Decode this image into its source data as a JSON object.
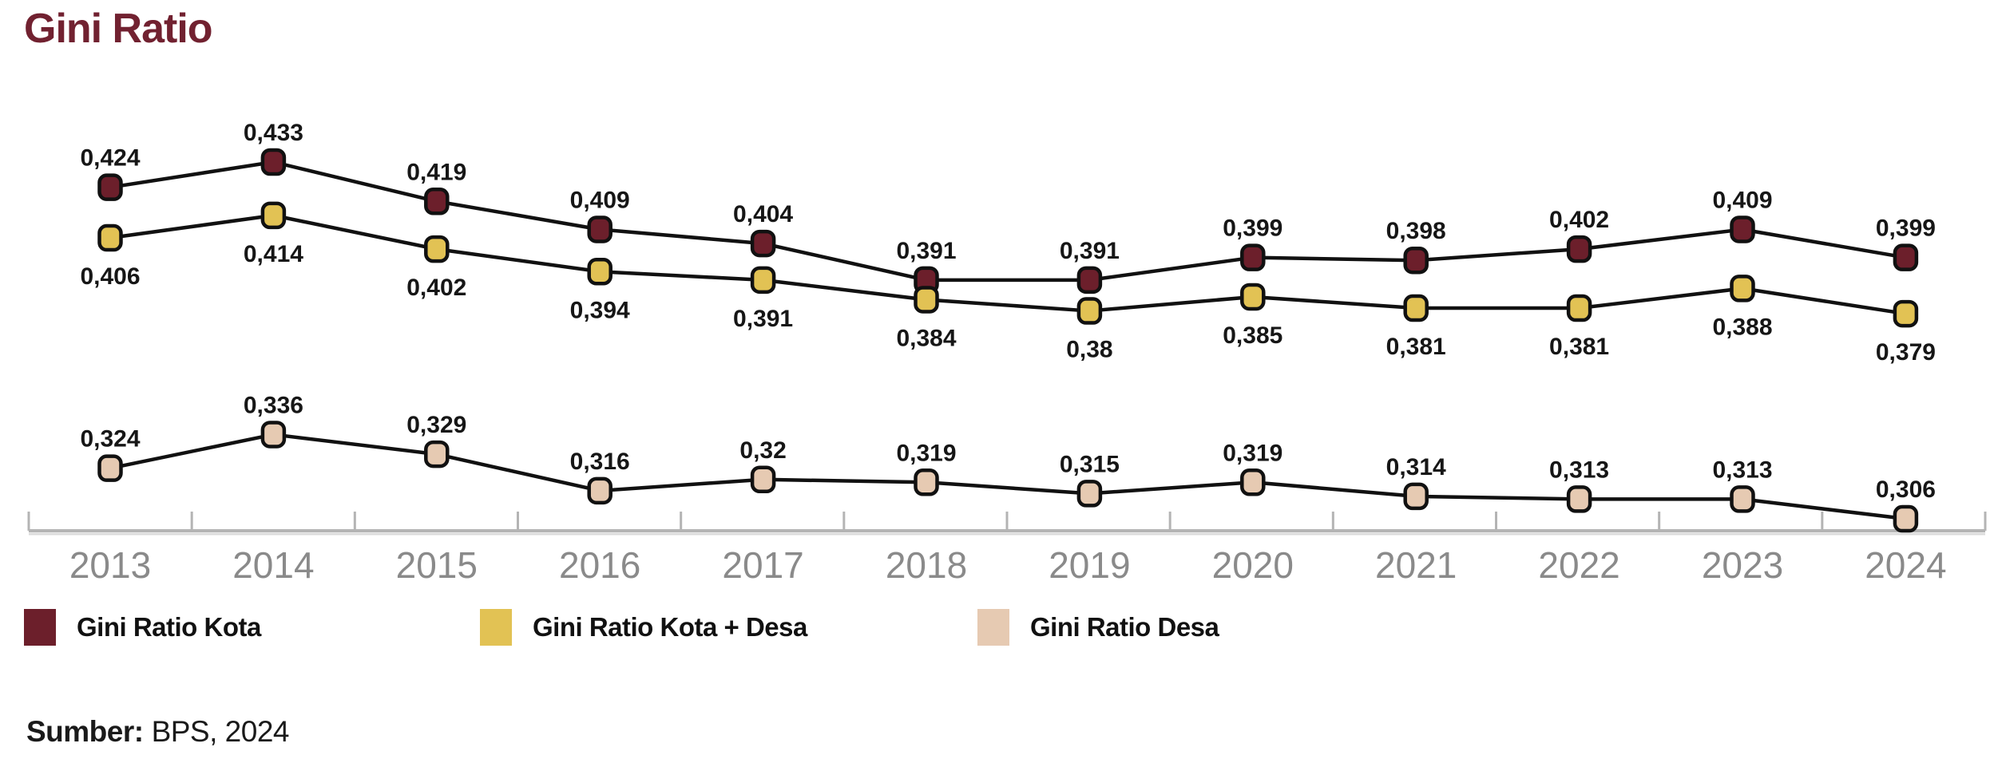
{
  "title": "Gini Ratio",
  "source": {
    "label": "Sumber:",
    "value": "BPS, 2024"
  },
  "colors": {
    "title": "#712130",
    "series_kota": "#6c1f2b",
    "series_kota_desa": "#e2c254",
    "series_desa": "#e6cab2",
    "connector_line": "#111111",
    "axis": "#b4b4b4",
    "year_label": "#8a8a8a",
    "value_label": "#161616"
  },
  "legend": {
    "items": [
      {
        "label": "Gini Ratio Kota",
        "color": "#6c1f2b"
      },
      {
        "label": "Gini Ratio Kota + Desa",
        "color": "#e2c254"
      },
      {
        "label": "Gini Ratio Desa",
        "color": "#e6cab2"
      }
    ]
  },
  "chart_data": {
    "type": "line",
    "title": "Gini Ratio",
    "categories": [
      "2013",
      "2014",
      "2015",
      "2016",
      "2017",
      "2018",
      "2019",
      "2020",
      "2021",
      "2022",
      "2023",
      "2024"
    ],
    "series": [
      {
        "name": "Gini Ratio Kota",
        "key": "kota",
        "color": "#6c1f2b",
        "label_position": "above",
        "values": [
          0.424,
          0.433,
          0.419,
          0.409,
          0.404,
          0.391,
          0.391,
          0.399,
          0.398,
          0.402,
          0.409,
          0.399
        ]
      },
      {
        "name": "Gini Ratio Kota + Desa",
        "key": "kota-desa",
        "color": "#e2c254",
        "label_position": "below",
        "values": [
          0.406,
          0.414,
          0.402,
          0.394,
          0.391,
          0.384,
          0.38,
          0.385,
          0.381,
          0.381,
          0.388,
          0.379
        ]
      },
      {
        "name": "Gini Ratio Desa",
        "key": "desa",
        "color": "#e6cab2",
        "label_position": "above",
        "values": [
          0.324,
          0.336,
          0.329,
          0.316,
          0.32,
          0.319,
          0.315,
          0.319,
          0.314,
          0.313,
          0.313,
          0.306
        ]
      }
    ],
    "decimal_separator": ",",
    "value_labels_shown": true,
    "grid": false,
    "y_axis_shown": false,
    "legend_position": "bottom"
  }
}
